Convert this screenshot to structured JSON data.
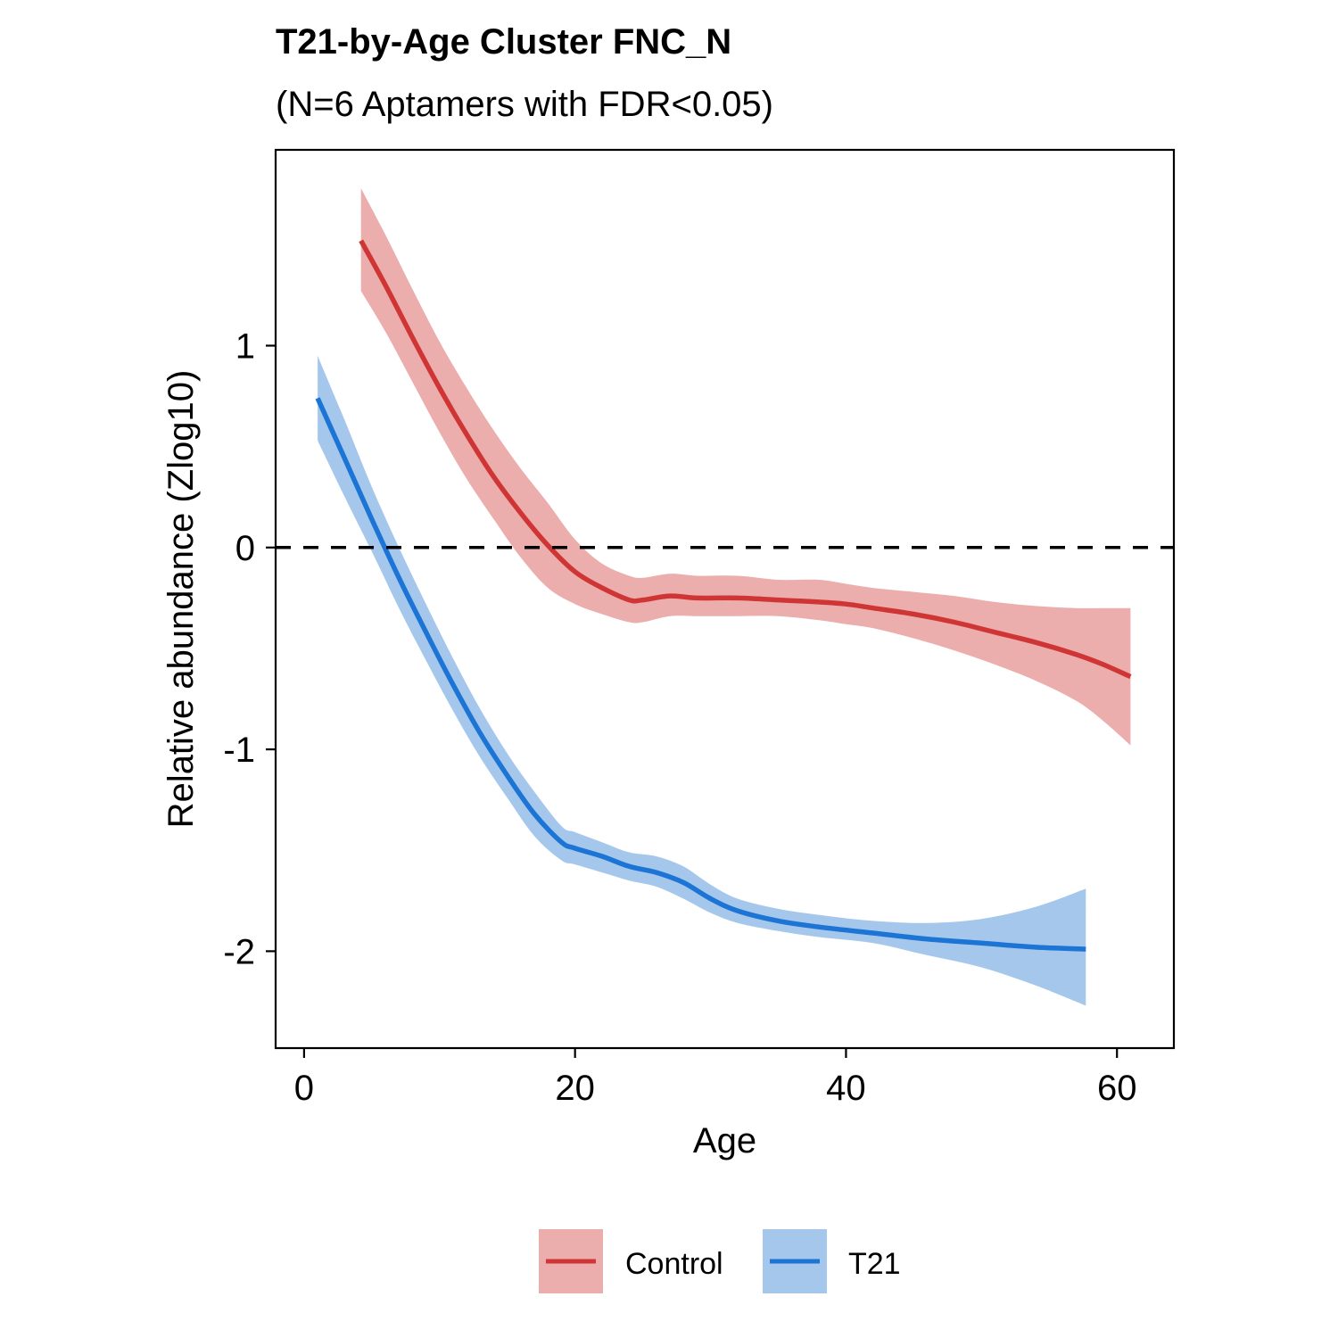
{
  "chart_data": {
    "type": "line",
    "title": "T21-by-Age Cluster FNC_N",
    "subtitle": "(N=6 Aptamers with FDR<0.05)",
    "xlabel": "Age",
    "ylabel": "Relative abundance (Zlog10)",
    "xlim": [
      -2.1,
      64.2
    ],
    "ylim": [
      -2.48,
      1.97
    ],
    "xticks": [
      0,
      20,
      40,
      60
    ],
    "yticks": [
      -2,
      -1,
      0,
      1
    ],
    "xtick_labels": [
      "0",
      "20",
      "40",
      "60"
    ],
    "ytick_labels": [
      "-2",
      "-1",
      "0",
      "1"
    ],
    "reference_line": {
      "y": 0,
      "style": "dashed"
    },
    "legend_position": "bottom",
    "series": [
      {
        "name": "Control",
        "line_color": "#d03535",
        "band_color": "#ecadad",
        "x": [
          4.2,
          6,
          8,
          10,
          12,
          14,
          16,
          18,
          20,
          22,
          24,
          25,
          27,
          29,
          32,
          35,
          38,
          40,
          42,
          45,
          48,
          51,
          54,
          57,
          59,
          61
        ],
        "y": [
          1.52,
          1.3,
          1.04,
          0.79,
          0.56,
          0.35,
          0.17,
          0.01,
          -0.12,
          -0.2,
          -0.26,
          -0.26,
          -0.24,
          -0.25,
          -0.25,
          -0.26,
          -0.27,
          -0.28,
          -0.3,
          -0.33,
          -0.37,
          -0.42,
          -0.47,
          -0.53,
          -0.58,
          -0.64
        ],
        "lower": [
          1.27,
          1.07,
          0.82,
          0.57,
          0.34,
          0.14,
          -0.05,
          -0.2,
          -0.28,
          -0.33,
          -0.37,
          -0.37,
          -0.34,
          -0.34,
          -0.34,
          -0.34,
          -0.36,
          -0.38,
          -0.4,
          -0.45,
          -0.51,
          -0.58,
          -0.66,
          -0.76,
          -0.86,
          -0.98
        ],
        "upper": [
          1.78,
          1.55,
          1.28,
          1.02,
          0.79,
          0.58,
          0.39,
          0.22,
          0.04,
          -0.08,
          -0.14,
          -0.15,
          -0.13,
          -0.14,
          -0.14,
          -0.16,
          -0.16,
          -0.18,
          -0.2,
          -0.22,
          -0.24,
          -0.27,
          -0.29,
          -0.3,
          -0.3,
          -0.3
        ]
      },
      {
        "name": "T21",
        "line_color": "#1c74d4",
        "band_color": "#a6c7ec",
        "x": [
          1,
          3,
          5,
          7,
          9,
          11,
          13,
          15,
          17,
          19,
          20,
          22,
          24,
          26,
          28,
          30,
          32,
          35,
          38,
          42,
          46,
          50,
          54,
          57.7
        ],
        "y": [
          0.74,
          0.44,
          0.14,
          -0.15,
          -0.42,
          -0.68,
          -0.92,
          -1.13,
          -1.32,
          -1.46,
          -1.49,
          -1.53,
          -1.58,
          -1.61,
          -1.66,
          -1.74,
          -1.8,
          -1.85,
          -1.88,
          -1.91,
          -1.94,
          -1.96,
          -1.98,
          -1.99
        ],
        "lower": [
          0.53,
          0.25,
          -0.02,
          -0.3,
          -0.56,
          -0.81,
          -1.04,
          -1.24,
          -1.43,
          -1.55,
          -1.57,
          -1.61,
          -1.65,
          -1.68,
          -1.74,
          -1.81,
          -1.86,
          -1.9,
          -1.93,
          -1.96,
          -2.02,
          -2.08,
          -2.17,
          -2.27
        ],
        "upper": [
          0.95,
          0.63,
          0.3,
          0.0,
          -0.28,
          -0.55,
          -0.8,
          -1.02,
          -1.21,
          -1.38,
          -1.41,
          -1.46,
          -1.51,
          -1.53,
          -1.58,
          -1.67,
          -1.74,
          -1.79,
          -1.82,
          -1.85,
          -1.86,
          -1.84,
          -1.78,
          -1.69
        ]
      }
    ]
  }
}
